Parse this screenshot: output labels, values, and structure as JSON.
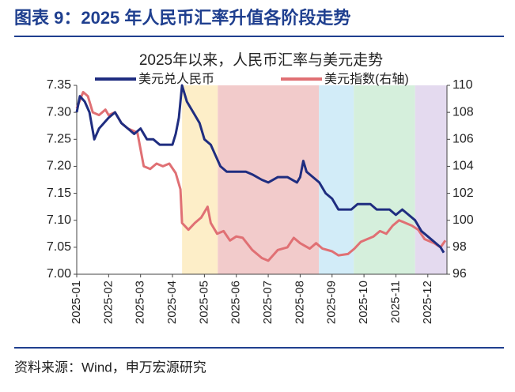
{
  "header": {
    "title": "图表 9：2025 年人民币汇率升值各阶段走势"
  },
  "chart_data": {
    "type": "line",
    "title": "2025年以来，人民币汇率与美元走势",
    "xlim": [
      0,
      11.6
    ],
    "xticks": [
      {
        "value": 0,
        "label": "2025-01"
      },
      {
        "value": 1,
        "label": "2025-02"
      },
      {
        "value": 2,
        "label": "2025-03"
      },
      {
        "value": 3,
        "label": "2025-04"
      },
      {
        "value": 4,
        "label": "2025-05"
      },
      {
        "value": 5,
        "label": "2025-06"
      },
      {
        "value": 6,
        "label": "2025-07"
      },
      {
        "value": 7,
        "label": "2025-08"
      },
      {
        "value": 8,
        "label": "2025-09"
      },
      {
        "value": 9,
        "label": "2025-10"
      },
      {
        "value": 10,
        "label": "2025-11"
      },
      {
        "value": 11,
        "label": "2025-12"
      }
    ],
    "ylim": [
      7.0,
      7.35
    ],
    "yticks": [
      {
        "value": 7.0,
        "label": "7.00"
      },
      7.05,
      {
        "value": 7.1,
        "label": "7.10"
      },
      7.15,
      {
        "value": 7.2,
        "label": "7.20"
      },
      7.25,
      {
        "value": 7.3,
        "label": "7.30"
      },
      7.35
    ],
    "y2lim": [
      96,
      110
    ],
    "y2ticks": [
      96,
      98,
      100,
      102,
      104,
      106,
      108,
      110
    ],
    "bands": [
      {
        "start": 3.3,
        "end": 4.42,
        "color": "#fdeec8"
      },
      {
        "start": 4.42,
        "end": 7.59,
        "color": "#f2cbcb"
      },
      {
        "start": 7.59,
        "end": 8.68,
        "color": "#d2ecf8"
      },
      {
        "start": 8.68,
        "end": 10.6,
        "color": "#d5efdc"
      },
      {
        "start": 10.6,
        "end": 11.6,
        "color": "#e4daef"
      }
    ],
    "series": [
      {
        "name": "美元兑人民币",
        "color": "#1f2d80",
        "x": [
          0,
          0.1,
          0.25,
          0.4,
          0.55,
          0.7,
          0.85,
          1.0,
          1.2,
          1.4,
          1.6,
          1.8,
          2.0,
          2.2,
          2.4,
          2.6,
          2.75,
          3.0,
          3.1,
          3.2,
          3.3,
          3.45,
          3.65,
          3.85,
          4.0,
          4.2,
          4.35,
          4.5,
          4.7,
          5.0,
          5.3,
          5.5,
          5.8,
          6.0,
          6.3,
          6.6,
          6.9,
          7.0,
          7.1,
          7.2,
          7.4,
          7.6,
          7.8,
          8.0,
          8.2,
          8.4,
          8.6,
          8.8,
          9.0,
          9.2,
          9.4,
          9.6,
          9.8,
          10.0,
          10.2,
          10.4,
          10.6,
          10.8,
          11.0,
          11.2,
          11.4,
          11.5
        ],
        "values": [
          7.3,
          7.33,
          7.32,
          7.3,
          7.25,
          7.27,
          7.28,
          7.29,
          7.3,
          7.28,
          7.27,
          7.26,
          7.27,
          7.25,
          7.25,
          7.24,
          7.24,
          7.24,
          7.26,
          7.29,
          7.35,
          7.32,
          7.3,
          7.28,
          7.25,
          7.24,
          7.22,
          7.2,
          7.19,
          7.19,
          7.19,
          7.185,
          7.175,
          7.17,
          7.18,
          7.18,
          7.17,
          7.18,
          7.21,
          7.19,
          7.18,
          7.17,
          7.15,
          7.14,
          7.12,
          7.12,
          7.12,
          7.13,
          7.13,
          7.13,
          7.12,
          7.12,
          7.12,
          7.11,
          7.12,
          7.11,
          7.1,
          7.08,
          7.07,
          7.06,
          7.05,
          7.04
        ]
      },
      {
        "name": "美元指数(右轴)",
        "color": "#e07074",
        "axis": "y2",
        "x": [
          0,
          0.2,
          0.35,
          0.5,
          0.7,
          0.9,
          1.0,
          1.2,
          1.4,
          1.6,
          1.9,
          2.1,
          2.3,
          2.5,
          2.7,
          2.9,
          3.1,
          3.25,
          3.3,
          3.5,
          3.7,
          3.9,
          4.1,
          4.2,
          4.4,
          4.6,
          4.8,
          5.0,
          5.2,
          5.5,
          5.8,
          6.0,
          6.3,
          6.6,
          6.8,
          7.0,
          7.3,
          7.5,
          7.7,
          8.0,
          8.2,
          8.5,
          8.7,
          8.9,
          9.1,
          9.3,
          9.5,
          9.7,
          9.9,
          10.1,
          10.3,
          10.5,
          10.7,
          10.9,
          11.2,
          11.4,
          11.55
        ],
        "values": [
          108.3,
          109.5,
          109.2,
          108.0,
          107.8,
          108.2,
          107.8,
          108.0,
          107.2,
          106.8,
          106.5,
          104.0,
          103.8,
          104.2,
          104.0,
          104.2,
          103.5,
          102.3,
          99.8,
          99.3,
          99.8,
          100.2,
          101.0,
          99.8,
          99.0,
          99.2,
          98.5,
          98.8,
          98.7,
          97.8,
          97.2,
          97.0,
          97.8,
          98.0,
          98.7,
          98.3,
          97.9,
          98.3,
          97.9,
          97.7,
          97.4,
          97.5,
          97.9,
          98.4,
          98.6,
          98.8,
          99.2,
          99.0,
          99.6,
          100.0,
          99.8,
          99.6,
          99.3,
          98.6,
          98.3,
          98.0,
          98.5
        ]
      }
    ]
  },
  "footer": {
    "source": "资料来源：Wind，申万宏源研究"
  }
}
